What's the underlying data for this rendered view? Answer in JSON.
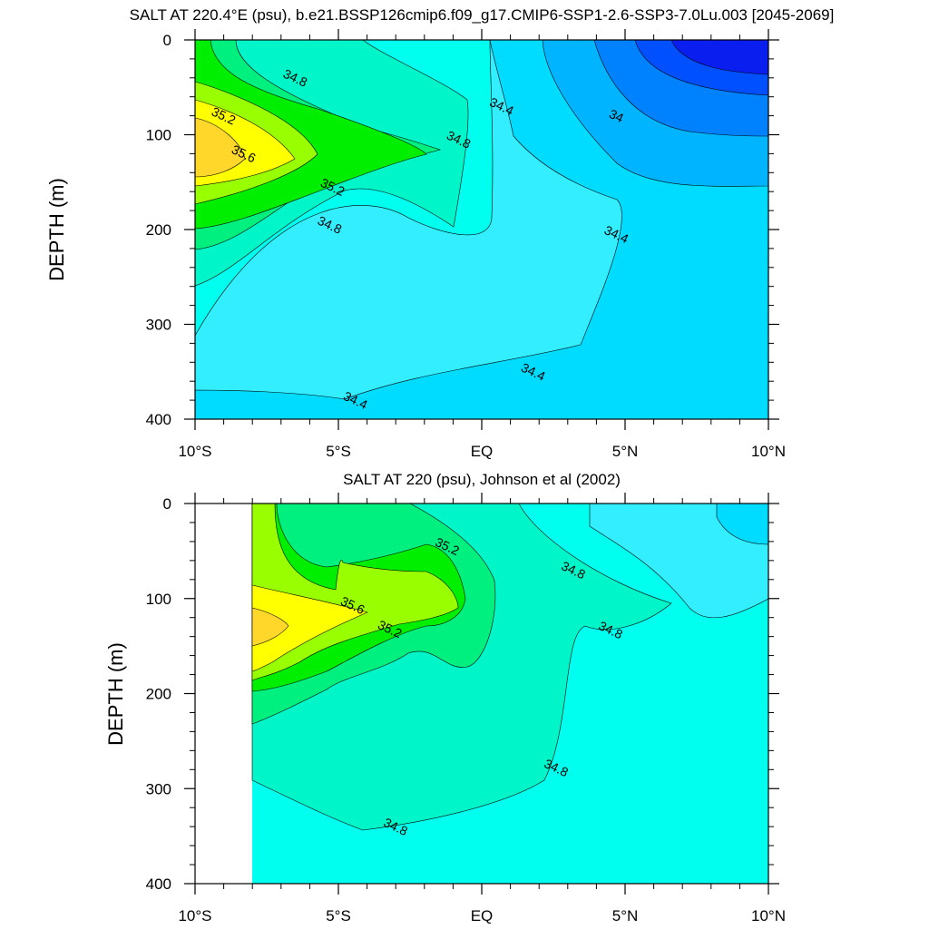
{
  "chart_data": [
    {
      "type": "heatmap",
      "subtype": "filled-contour",
      "title": "SALT AT 220.4°E (psu), b.e21.BSSP126cmip6.f09_g17.CMIP6-SSP1-2.6-SSP3-7.0Lu.003 [2045-2069]",
      "ylabel": "DEPTH (m)",
      "xlabel": "",
      "xlim": [
        -10,
        10
      ],
      "ylim": [
        400,
        0
      ],
      "x_ticks": [
        -10,
        -5,
        0,
        5,
        10
      ],
      "x_tick_labels": [
        "10°S",
        "5°S",
        "EQ",
        "5°N",
        "10°N"
      ],
      "y_ticks": [
        0,
        100,
        200,
        300,
        400
      ],
      "y_tick_labels": [
        "0",
        "100",
        "200",
        "300",
        "400"
      ],
      "levels": [
        33.6,
        33.8,
        34.0,
        34.2,
        34.4,
        34.6,
        34.8,
        35.0,
        35.2,
        35.4,
        35.6,
        35.8
      ],
      "fill_colors": [
        "#0a1ef0",
        "#0050ff",
        "#0082ff",
        "#00b4ff",
        "#00dcff",
        "#33eeff",
        "#00ffee",
        "#00f6c8",
        "#00f07f",
        "#00ee00",
        "#99ff00",
        "#ffff00",
        "#ffd72b"
      ],
      "data_extent": [
        -10,
        10,
        0,
        400
      ],
      "contour_labels": [
        {
          "text": "34.8",
          "x": -6.5,
          "y": 40
        },
        {
          "text": "35.2",
          "x": -9.0,
          "y": 80
        },
        {
          "text": "35.6",
          "x": -8.3,
          "y": 120
        },
        {
          "text": "35.2",
          "x": -5.2,
          "y": 155
        },
        {
          "text": "34.8",
          "x": -5.3,
          "y": 195
        },
        {
          "text": "34.8",
          "x": -0.8,
          "y": 105
        },
        {
          "text": "34.4",
          "x": 0.7,
          "y": 70
        },
        {
          "text": "34",
          "x": 4.7,
          "y": 80
        },
        {
          "text": "34.4",
          "x": 4.7,
          "y": 205
        },
        {
          "text": "34.4",
          "x": 1.8,
          "y": 350
        },
        {
          "text": "34.4",
          "x": -4.4,
          "y": 380
        }
      ]
    },
    {
      "type": "heatmap",
      "subtype": "filled-contour",
      "title": "SALT AT 220 (psu), Johnson et al (2002)",
      "ylabel": "DEPTH (m)",
      "xlabel": "",
      "xlim": [
        -10,
        10
      ],
      "ylim": [
        400,
        0
      ],
      "x_ticks": [
        -10,
        -5,
        0,
        5,
        10
      ],
      "x_tick_labels": [
        "10°S",
        "5°S",
        "EQ",
        "5°N",
        "10°N"
      ],
      "y_ticks": [
        0,
        100,
        200,
        300,
        400
      ],
      "y_tick_labels": [
        "0",
        "100",
        "200",
        "300",
        "400"
      ],
      "levels": [
        33.6,
        33.8,
        34.0,
        34.2,
        34.4,
        34.6,
        34.8,
        35.0,
        35.2,
        35.4,
        35.6,
        35.8
      ],
      "fill_colors": [
        "#0a1ef0",
        "#0050ff",
        "#0082ff",
        "#00b4ff",
        "#00dcff",
        "#33eeff",
        "#00ffee",
        "#00f6c8",
        "#00f07f",
        "#00ee00",
        "#99ff00",
        "#ffff00",
        "#ffd72b"
      ],
      "data_extent": [
        -8,
        10,
        0,
        400
      ],
      "contour_labels": [
        {
          "text": "35.2",
          "x": -1.2,
          "y": 45
        },
        {
          "text": "35.6",
          "x": -4.5,
          "y": 107
        },
        {
          "text": "35.2",
          "x": -3.2,
          "y": 132
        },
        {
          "text": "34.8",
          "x": 3.2,
          "y": 70
        },
        {
          "text": "34.8",
          "x": 4.5,
          "y": 133
        },
        {
          "text": "34.8",
          "x": 2.6,
          "y": 278
        },
        {
          "text": "34.8",
          "x": -3.0,
          "y": 340
        }
      ]
    }
  ]
}
